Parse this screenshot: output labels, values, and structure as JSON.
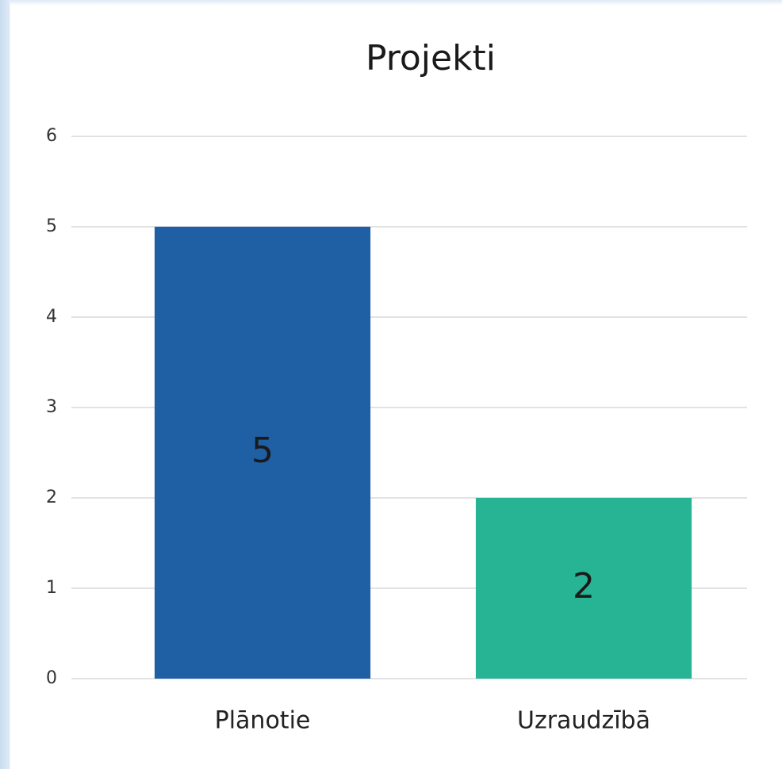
{
  "chart_data": {
    "type": "bar",
    "title": "Projekti",
    "categories": [
      "Plānotie",
      "Uzraudzībā"
    ],
    "values": [
      5,
      2
    ],
    "colors": [
      "#1f5fa3",
      "#27b495"
    ],
    "ylim": [
      0,
      6
    ],
    "yticks": [
      0,
      1,
      2,
      3,
      4,
      5,
      6
    ],
    "grid": true
  }
}
